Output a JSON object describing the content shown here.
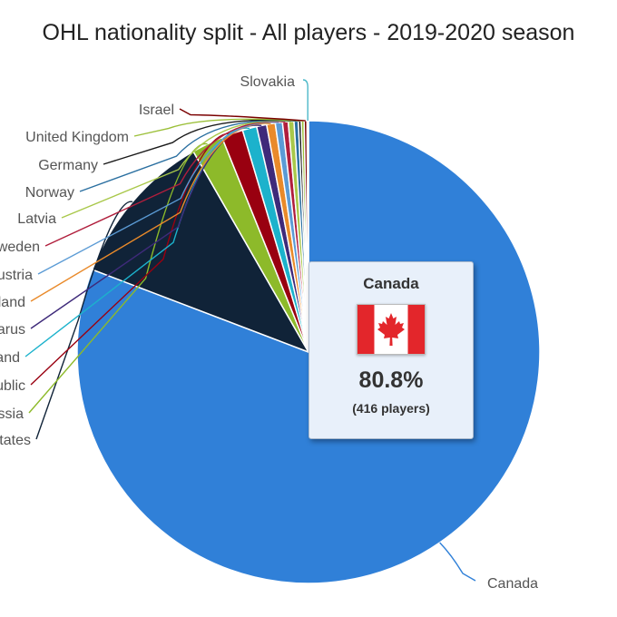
{
  "chart_data": {
    "type": "pie",
    "title": "OHL nationality split - All players - 2019-2020 season",
    "slices": [
      {
        "label": "Canada",
        "value": 80.8,
        "color": "#3080d8"
      },
      {
        "label": "United States",
        "value": 10.9,
        "color": "#102338"
      },
      {
        "label": "Russia",
        "value": 2.2,
        "color": "#8dba2a"
      },
      {
        "label": "Czech Republic",
        "value": 1.5,
        "color": "#990010"
      },
      {
        "label": "Finland",
        "value": 1.0,
        "color": "#1cb2cc"
      },
      {
        "label": "Belarus",
        "value": 0.7,
        "color": "#3e2a7a"
      },
      {
        "label": "Switzerland",
        "value": 0.6,
        "color": "#e98a2a"
      },
      {
        "label": "Austria",
        "value": 0.5,
        "color": "#5b9bd5"
      },
      {
        "label": "Sweden",
        "value": 0.4,
        "color": "#b01e3c"
      },
      {
        "label": "Latvia",
        "value": 0.4,
        "color": "#a9c84a"
      },
      {
        "label": "Norway",
        "value": 0.3,
        "color": "#2a6fa0"
      },
      {
        "label": "Germany",
        "value": 0.2,
        "color": "#1a1a1a"
      },
      {
        "label": "United Kingdom",
        "value": 0.2,
        "color": "#9cc03a"
      },
      {
        "label": "Israel",
        "value": 0.2,
        "color": "#7a0000"
      },
      {
        "label": "Slovakia",
        "value": 0.1,
        "color": "#4cb8c8"
      }
    ]
  },
  "tooltip": {
    "name": "Canada",
    "value": "80.8%",
    "sub": "(416 players)",
    "flag": {
      "red": "#e3262b",
      "white": "#ffffff"
    }
  }
}
